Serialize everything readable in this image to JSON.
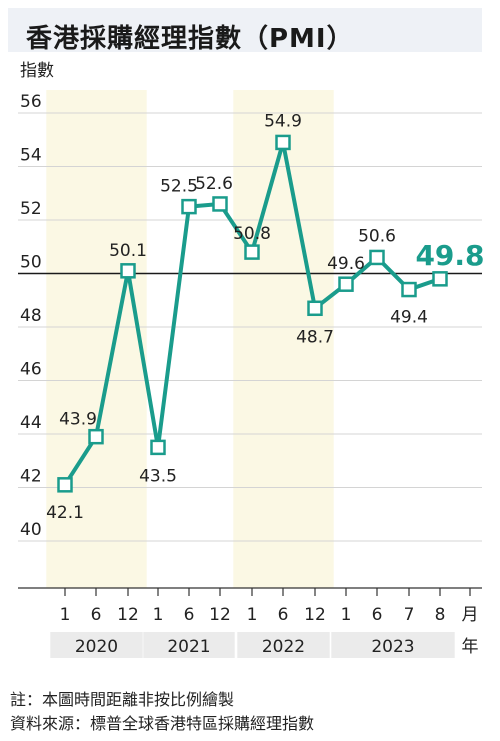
{
  "title": "香港採購經理指數（PMI）",
  "chart_data": {
    "type": "line",
    "ylabel": "指數",
    "ylim": [
      38,
      57
    ],
    "yticks": [
      40,
      42,
      44,
      46,
      48,
      50,
      52,
      54,
      56
    ],
    "reference_line": 50,
    "x_labels": [
      "1",
      "6",
      "12",
      "1",
      "6",
      "12",
      "1",
      "6",
      "12",
      "1",
      "6",
      "7",
      "8"
    ],
    "x_unit": "月",
    "years": [
      {
        "label": "2020",
        "span": [
          0,
          2
        ],
        "shaded": true
      },
      {
        "label": "2021",
        "span": [
          3,
          5
        ],
        "shaded": false
      },
      {
        "label": "2022",
        "span": [
          6,
          8
        ],
        "shaded": true
      },
      {
        "label": "2023",
        "span": [
          9,
          12
        ],
        "shaded": false
      }
    ],
    "year_unit": "年",
    "values": [
      42.1,
      43.9,
      50.1,
      43.5,
      52.5,
      52.6,
      50.8,
      54.9,
      48.7,
      49.6,
      50.6,
      49.4,
      49.8
    ],
    "value_labels": [
      "42.1",
      "43.9",
      "50.1",
      "43.5",
      "52.5",
      "52.6",
      "50.8",
      "54.9",
      "48.7",
      "49.6",
      "50.6",
      "49.4",
      "49.8"
    ],
    "highlight_last": true,
    "line_color": "#1a9c8c",
    "shade_color": "#fbf8e4"
  },
  "notes": {
    "note": "註：本圖時間距離非按比例繪製",
    "source": "資料來源：標普全球香港特區採購經理指數"
  }
}
